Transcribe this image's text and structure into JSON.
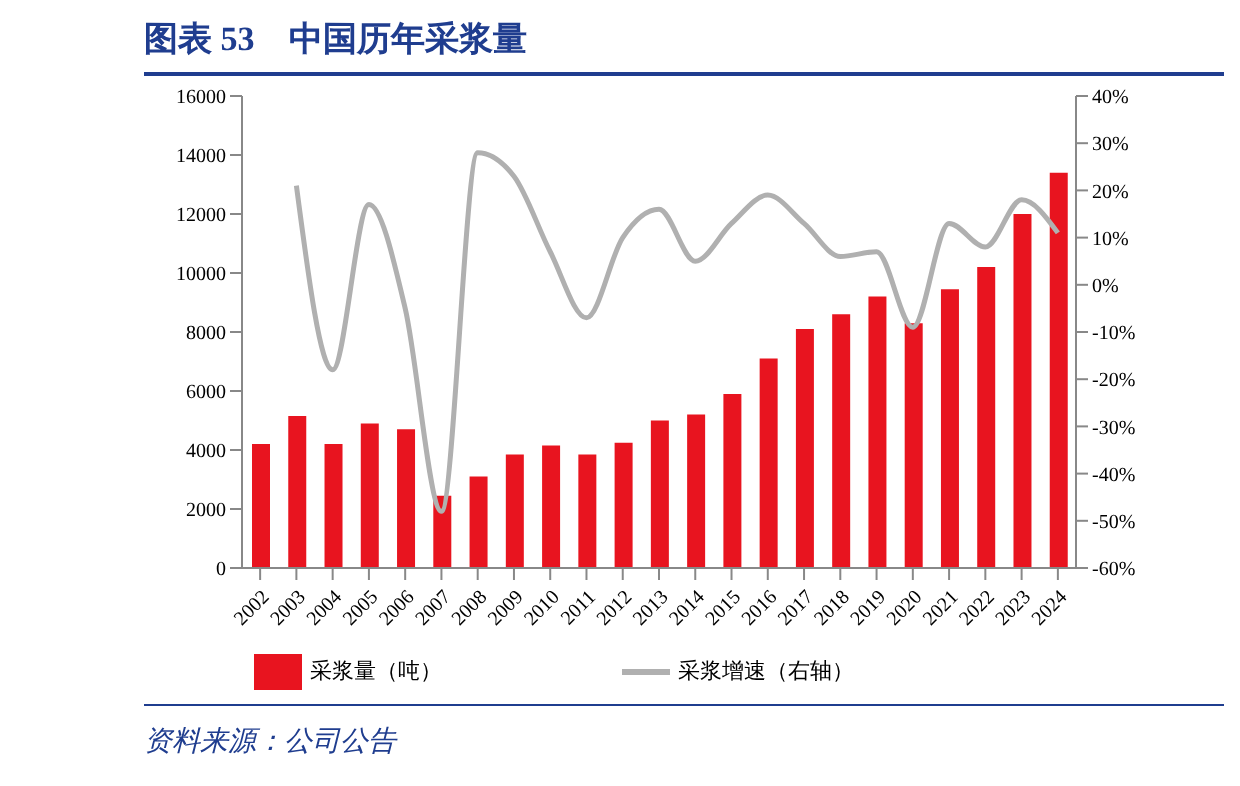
{
  "chart_data": {
    "type": "bar",
    "title": "图表 53　中国历年采浆量",
    "categories": [
      "2002",
      "2003",
      "2004",
      "2005",
      "2006",
      "2007",
      "2008",
      "2009",
      "2010",
      "2011",
      "2012",
      "2013",
      "2014",
      "2015",
      "2016",
      "2017",
      "2018",
      "2019",
      "2020",
      "2021",
      "2022",
      "2023",
      "2024"
    ],
    "series": [
      {
        "name": "采浆量（吨）",
        "color": "#e8141f",
        "values": [
          4200,
          5150,
          4200,
          4900,
          4700,
          2450,
          3100,
          3850,
          4150,
          3850,
          4250,
          5000,
          5200,
          5900,
          7100,
          8100,
          8600,
          9200,
          8300,
          9450,
          10200,
          12000,
          13400
        ]
      },
      {
        "name": "采浆增速（右轴）",
        "type": "line",
        "axis": "y2",
        "color": "#b0b0b0",
        "values": [
          null,
          21,
          -18,
          17,
          -5,
          -48,
          28,
          23,
          7,
          -7,
          10,
          16,
          5,
          13,
          19,
          13,
          6,
          7,
          -9,
          13,
          8,
          18,
          11
        ]
      }
    ],
    "ylim": [
      0,
      16000
    ],
    "yticks": [
      0,
      2000,
      4000,
      6000,
      8000,
      10000,
      12000,
      14000,
      16000
    ],
    "y2lim": [
      -60,
      40
    ],
    "y2ticks": [
      {
        "value": -60,
        "label": "-60%"
      },
      {
        "value": -50,
        "label": "-50%"
      },
      {
        "value": -40,
        "label": "-40%"
      },
      {
        "value": -30,
        "label": "-30%"
      },
      {
        "value": -20,
        "label": "-20%"
      },
      {
        "value": -10,
        "label": "-10%"
      },
      {
        "value": 0,
        "label": "0%"
      },
      {
        "value": 10,
        "label": "10%"
      },
      {
        "value": 20,
        "label": "20%"
      },
      {
        "value": 30,
        "label": "30%"
      },
      {
        "value": 40,
        "label": "40%"
      }
    ],
    "legend": "bottom",
    "annotations": [
      "资料来源：公司公告"
    ]
  }
}
